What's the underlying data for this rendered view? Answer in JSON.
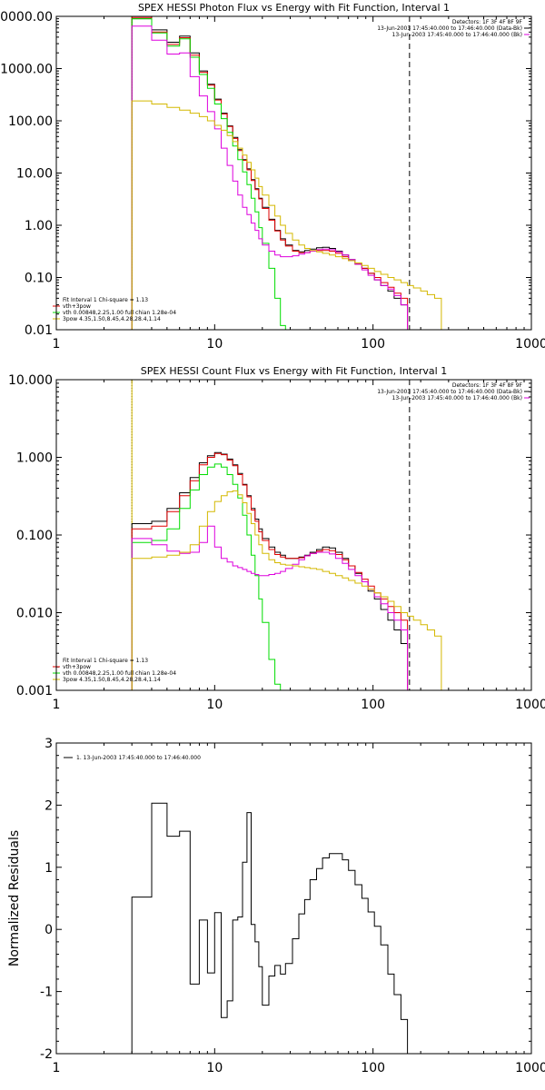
{
  "chart_data": [
    {
      "type": "line",
      "title": "SPEX HESSI Photon Flux vs Energy with Fit Function, Interval 1",
      "xscale": "log",
      "yscale": "log",
      "xlim": [
        1,
        1000
      ],
      "ylim": [
        0.01,
        10000
      ],
      "xticks": [
        1,
        10,
        100,
        1000
      ],
      "xtick_labels": [
        "1",
        "10",
        "100",
        "1000"
      ],
      "yticks": [
        0.01,
        0.1,
        1,
        10,
        100,
        1000,
        10000
      ],
      "ytick_labels": [
        "0.01",
        "0.10",
        "1.00",
        "10.00",
        "100.00",
        "1000.00",
        "10000.00"
      ],
      "vlines": [
        {
          "x": 3,
          "style": "dotted",
          "color": "#d4b800"
        },
        {
          "x": 3,
          "style": "dotted",
          "color": "#00cc00"
        },
        {
          "x": 170,
          "style": "dashed",
          "color": "#000000"
        }
      ],
      "info_text": [
        "Detectors: 1F 3F 4F 8F 9F",
        "13-Jun-2003 17:45:40.000 to 17:46:40.000 (Data-Bk)",
        "13-Jun-2003 17:45:40.000 to 17:46:40.000 (Bk)"
      ],
      "legend_lines": [
        {
          "text": "Fit Interval 1   Chi-square = 1.13",
          "color": "#000000"
        },
        {
          "text": "vth+3pow",
          "color": "#e00000"
        },
        {
          "text": "vth 0.00848,2.25,1.00  full chian 1.28e-04",
          "color": "#00dd00"
        },
        {
          "text": "3pow 4.35,1.50,8.45,4.28,28.4,1.14",
          "color": "#d4b800"
        }
      ],
      "x_edges": [
        3,
        4,
        5,
        6,
        7,
        8,
        9,
        10,
        11,
        12,
        13,
        14,
        15,
        16,
        17,
        18,
        19,
        20,
        22,
        24,
        26,
        28,
        31,
        34,
        37,
        40,
        44,
        48,
        53,
        58,
        64,
        70,
        77,
        85,
        93,
        102,
        112,
        124,
        136,
        150,
        165,
        180,
        200,
        220,
        245,
        270,
        290
      ],
      "series": [
        {
          "name": "",
          "color": "#000000",
          "values": [
            9000,
            5500,
            3200,
            4200,
            2000,
            900,
            500,
            260,
            140,
            80,
            48,
            28,
            18,
            12,
            7.5,
            5,
            3.3,
            2.2,
            1.3,
            0.8,
            0.55,
            0.42,
            0.33,
            0.31,
            0.33,
            0.35,
            0.37,
            0.38,
            0.36,
            0.32,
            0.27,
            0.22,
            0.18,
            0.15,
            0.12,
            0.09,
            0.07,
            0.055,
            0.04,
            0.03,
            0.001,
            null,
            null,
            null,
            null,
            null
          ]
        },
        {
          "name": "",
          "color": "#e00000",
          "values": [
            9500,
            5000,
            2900,
            3900,
            1800,
            850,
            480,
            250,
            135,
            78,
            46,
            27,
            17.5,
            11.5,
            7.2,
            4.8,
            3.2,
            2.1,
            1.25,
            0.78,
            0.52,
            0.4,
            0.32,
            0.3,
            0.3,
            0.32,
            0.33,
            0.33,
            0.32,
            0.29,
            0.25,
            0.21,
            0.18,
            0.15,
            0.12,
            0.1,
            0.08,
            0.065,
            0.05,
            0.04,
            0.001,
            null,
            null,
            null,
            null,
            null
          ]
        },
        {
          "name": "",
          "color": "#00dd00",
          "values": [
            9000,
            4800,
            2700,
            3700,
            1650,
            770,
            420,
            210,
            110,
            60,
            33,
            18,
            10.5,
            6,
            3.3,
            1.8,
            0.9,
            0.45,
            0.15,
            0.04,
            0.012,
            0.005,
            null,
            null,
            null,
            null,
            null,
            null,
            null,
            null,
            null,
            null,
            null,
            null,
            null,
            null,
            null,
            null,
            null,
            null,
            null,
            null,
            null,
            null,
            null,
            null
          ]
        },
        {
          "name": "",
          "color": "#dd00dd",
          "values": [
            6500,
            3500,
            1900,
            2000,
            700,
            300,
            150,
            70,
            30,
            14,
            7,
            3.8,
            2.2,
            1.6,
            1.1,
            0.8,
            0.55,
            0.42,
            0.32,
            0.27,
            0.25,
            0.25,
            0.26,
            0.28,
            0.3,
            0.32,
            0.34,
            0.35,
            0.34,
            0.31,
            0.27,
            0.22,
            0.18,
            0.14,
            0.11,
            0.09,
            0.07,
            0.06,
            0.045,
            0.03,
            0.001,
            null,
            null,
            null,
            null,
            null
          ]
        },
        {
          "name": "",
          "color": "#d4b800",
          "values": [
            240,
            210,
            180,
            160,
            140,
            120,
            100,
            82,
            66,
            52,
            40,
            30,
            22,
            16,
            11.5,
            8,
            5.5,
            3.8,
            2.4,
            1.5,
            1,
            0.7,
            0.52,
            0.42,
            0.36,
            0.33,
            0.31,
            0.29,
            0.27,
            0.25,
            0.23,
            0.21,
            0.19,
            0.17,
            0.15,
            0.13,
            0.115,
            0.1,
            0.09,
            0.08,
            0.07,
            0.063,
            0.055,
            0.047,
            0.04,
            0.001
          ]
        }
      ]
    },
    {
      "type": "line",
      "title": "SPEX HESSI Count Flux vs Energy with Fit Function, Interval 1",
      "xscale": "log",
      "yscale": "log",
      "xlim": [
        1,
        1000
      ],
      "ylim": [
        0.001,
        10
      ],
      "xticks": [
        1,
        10,
        100,
        1000
      ],
      "xtick_labels": [
        "1",
        "10",
        "100",
        "1000"
      ],
      "yticks": [
        0.001,
        0.01,
        0.1,
        1,
        10
      ],
      "ytick_labels": [
        "0.001",
        "0.010",
        "0.100",
        "1.000",
        "10.000"
      ],
      "vlines": [
        {
          "x": 3,
          "style": "dotted",
          "color": "#000000"
        },
        {
          "x": 3,
          "style": "solid",
          "color": "#d4b800"
        },
        {
          "x": 170,
          "style": "dashed",
          "color": "#000000"
        }
      ],
      "info_text": [
        "Detectors: 1F 3F 4F 8F 9F",
        "13-Jun-2003 17:45:40.000 to 17:46:40.000 (Data-Bk)",
        "13-Jun-2003 17:45:40.000 to 17:46:40.000 (Bk)"
      ],
      "legend_lines": [
        {
          "text": "Fit Interval 1   Chi-square = 1.13",
          "color": "#000000"
        },
        {
          "text": "vth+3pow",
          "color": "#e00000"
        },
        {
          "text": "vth 0.00848,2.25,1.00  full chian 1.28e-04",
          "color": "#00dd00"
        },
        {
          "text": "3pow 4.35,1.50,8.45,4.28,28.4,1.14",
          "color": "#d4b800"
        }
      ],
      "x_edges": [
        3,
        4,
        5,
        6,
        7,
        8,
        9,
        10,
        11,
        12,
        13,
        14,
        15,
        16,
        17,
        18,
        19,
        20,
        22,
        24,
        26,
        28,
        31,
        34,
        37,
        40,
        44,
        48,
        53,
        58,
        64,
        70,
        77,
        85,
        93,
        102,
        112,
        124,
        136,
        150,
        165,
        180,
        200,
        220,
        245,
        270,
        290
      ],
      "series": [
        {
          "name": "",
          "color": "#000000",
          "values": [
            0.14,
            0.15,
            0.22,
            0.35,
            0.55,
            0.85,
            1.05,
            1.15,
            1.1,
            0.95,
            0.8,
            0.62,
            0.45,
            0.32,
            0.22,
            0.16,
            0.12,
            0.09,
            0.07,
            0.06,
            0.055,
            0.05,
            0.05,
            0.052,
            0.055,
            0.06,
            0.065,
            0.07,
            0.068,
            0.06,
            0.05,
            0.04,
            0.032,
            0.025,
            0.019,
            0.015,
            0.011,
            0.008,
            0.006,
            0.004,
            0.001,
            null,
            null,
            null,
            null,
            null
          ]
        },
        {
          "name": "",
          "color": "#e00000",
          "values": [
            0.12,
            0.13,
            0.2,
            0.32,
            0.5,
            0.8,
            1.0,
            1.12,
            1.08,
            0.92,
            0.78,
            0.6,
            0.44,
            0.31,
            0.21,
            0.15,
            0.11,
            0.085,
            0.065,
            0.056,
            0.052,
            0.05,
            0.05,
            0.051,
            0.054,
            0.058,
            0.062,
            0.065,
            0.063,
            0.056,
            0.048,
            0.04,
            0.033,
            0.027,
            0.022,
            0.018,
            0.015,
            0.012,
            0.01,
            0.008,
            0.001,
            null,
            null,
            null,
            null,
            null
          ]
        },
        {
          "name": "",
          "color": "#00dd00",
          "values": [
            0.08,
            0.085,
            0.12,
            0.22,
            0.38,
            0.6,
            0.75,
            0.82,
            0.75,
            0.6,
            0.45,
            0.3,
            0.18,
            0.1,
            0.055,
            0.03,
            0.015,
            0.0075,
            0.0025,
            0.0012,
            null,
            null,
            null,
            null,
            null,
            null,
            null,
            null,
            null,
            null,
            null,
            null,
            null,
            null,
            null,
            null,
            null,
            null,
            null,
            null,
            null,
            null,
            null,
            null,
            null,
            null
          ]
        },
        {
          "name": "",
          "color": "#dd00dd",
          "values": [
            0.09,
            0.075,
            0.062,
            0.058,
            0.06,
            0.08,
            0.13,
            0.07,
            0.05,
            0.045,
            0.04,
            0.038,
            0.036,
            0.034,
            0.032,
            0.031,
            0.03,
            0.03,
            0.031,
            0.032,
            0.034,
            0.037,
            0.042,
            0.048,
            0.054,
            0.058,
            0.06,
            0.06,
            0.057,
            0.05,
            0.043,
            0.036,
            0.03,
            0.025,
            0.02,
            0.016,
            0.013,
            0.01,
            0.008,
            0.006,
            0.001,
            null,
            null,
            null,
            null,
            null
          ]
        },
        {
          "name": "",
          "color": "#d4b800",
          "values": [
            0.05,
            0.052,
            0.055,
            0.06,
            0.075,
            0.13,
            0.2,
            0.27,
            0.32,
            0.36,
            0.37,
            0.33,
            0.26,
            0.19,
            0.14,
            0.1,
            0.075,
            0.058,
            0.048,
            0.044,
            0.042,
            0.041,
            0.04,
            0.039,
            0.038,
            0.037,
            0.036,
            0.034,
            0.032,
            0.03,
            0.028,
            0.026,
            0.024,
            0.022,
            0.02,
            0.018,
            0.016,
            0.014,
            0.012,
            0.01,
            0.009,
            0.008,
            0.007,
            0.006,
            0.005,
            0.001
          ]
        }
      ]
    },
    {
      "type": "line",
      "title": "",
      "xscale": "log",
      "yscale": "linear",
      "xlim": [
        1,
        1000
      ],
      "ylim": [
        -2,
        3
      ],
      "xticks": [
        1,
        10,
        100,
        1000
      ],
      "xtick_labels": [
        "1",
        "10",
        "100",
        "1000"
      ],
      "yticks": [
        -2,
        -1,
        0,
        1,
        2,
        3
      ],
      "ytick_labels": [
        "-2",
        "-1",
        "0",
        "1",
        "2",
        "3"
      ],
      "ylabel": "Normalized Residuals",
      "legend_lines": [
        {
          "text": "1. 13-Jun-2003 17:45:40.000 to 17:46:40.000",
          "color": "#000000"
        }
      ],
      "x_edges": [
        3,
        4,
        5,
        6,
        7,
        8,
        9,
        10,
        11,
        12,
        13,
        14,
        15,
        16,
        17,
        18,
        19,
        20,
        22,
        24,
        26,
        28,
        31,
        34,
        37,
        40,
        44,
        48,
        53,
        58,
        64,
        70,
        77,
        85,
        93,
        102,
        112,
        124,
        136,
        150,
        165,
        180
      ],
      "series": [
        {
          "name": "",
          "color": "#000000",
          "values": [
            0.52,
            2.03,
            1.5,
            1.58,
            -0.88,
            0.15,
            -0.7,
            0.27,
            -1.42,
            -1.15,
            0.15,
            0.2,
            1.08,
            1.88,
            0.08,
            -0.2,
            -0.6,
            -1.22,
            -0.75,
            -0.58,
            -0.72,
            -0.55,
            -0.15,
            0.25,
            0.48,
            0.8,
            0.98,
            1.15,
            1.22,
            1.22,
            1.12,
            0.95,
            0.72,
            0.5,
            0.28,
            0.05,
            -0.25,
            -0.72,
            -1.05,
            -1.45,
            -2.0
          ]
        }
      ]
    }
  ]
}
